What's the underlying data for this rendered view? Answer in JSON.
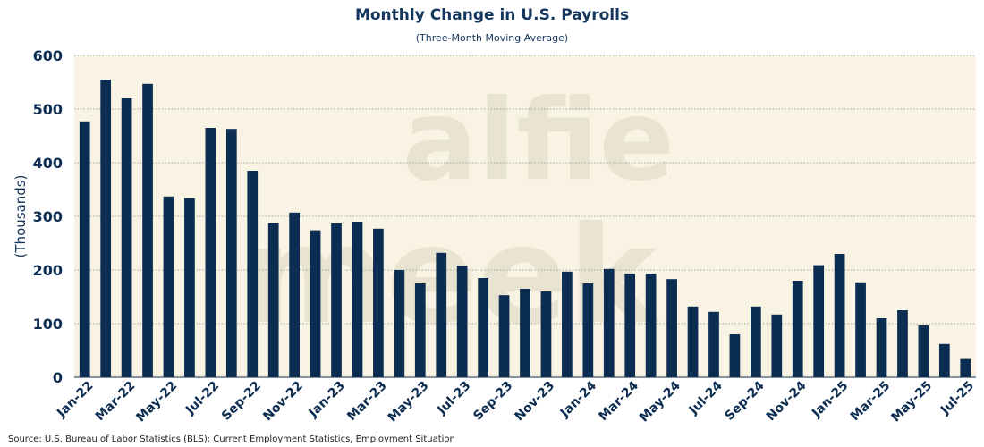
{
  "chart_data": {
    "type": "bar",
    "title": "Monthly Change in U.S. Payrolls",
    "subtitle": "(Three-Month Moving Average)",
    "ylabel": "(Thousands)",
    "xlabel": "",
    "ylim": [
      0,
      600
    ],
    "yticks": [
      0,
      100,
      200,
      300,
      400,
      500,
      600
    ],
    "grid": true,
    "source": "Source: U.S. Bureau of Labor Statistics (BLS): Current Employment Statistics, Employment Situation",
    "watermark": [
      "alfie",
      "meek"
    ],
    "categories": [
      "Jan-22",
      "Feb-22",
      "Mar-22",
      "Apr-22",
      "May-22",
      "Jun-22",
      "Jul-22",
      "Aug-22",
      "Sep-22",
      "Oct-22",
      "Nov-22",
      "Dec-22",
      "Jan-23",
      "Feb-23",
      "Mar-23",
      "Apr-23",
      "May-23",
      "Jun-23",
      "Jul-23",
      "Aug-23",
      "Sep-23",
      "Oct-23",
      "Nov-23",
      "Dec-23",
      "Jan-24",
      "Feb-24",
      "Mar-24",
      "Apr-24",
      "May-24",
      "Jun-24",
      "Jul-24",
      "Aug-24",
      "Sep-24",
      "Oct-24",
      "Nov-24",
      "Dec-24",
      "Jan-25",
      "Feb-25",
      "Mar-25",
      "Apr-25",
      "May-25",
      "Jun-25",
      "Jul-25"
    ],
    "tick_labels": [
      "Jan-22",
      "Mar-22",
      "May-22",
      "Jul-22",
      "Sep-22",
      "Nov-22",
      "Jan-23",
      "Mar-23",
      "May-23",
      "Jul-23",
      "Sep-23",
      "Nov-23",
      "Jan-24",
      "Mar-24",
      "May-24",
      "Jul-24",
      "Sep-24",
      "Nov-24",
      "Jan-25",
      "Mar-25",
      "May-25",
      "Jul-25"
    ],
    "values": [
      477,
      555,
      520,
      547,
      337,
      334,
      465,
      463,
      385,
      287,
      307,
      274,
      287,
      290,
      277,
      200,
      175,
      232,
      208,
      185,
      153,
      165,
      160,
      197,
      175,
      202,
      193,
      193,
      183,
      132,
      122,
      80,
      132,
      117,
      180,
      209,
      230,
      177,
      110,
      125,
      97,
      62,
      34
    ],
    "colors": {
      "bar": "#0c2d52",
      "plot_bg": "#f8f3e3",
      "grid": "#888888",
      "text": "#0d2d52"
    }
  }
}
